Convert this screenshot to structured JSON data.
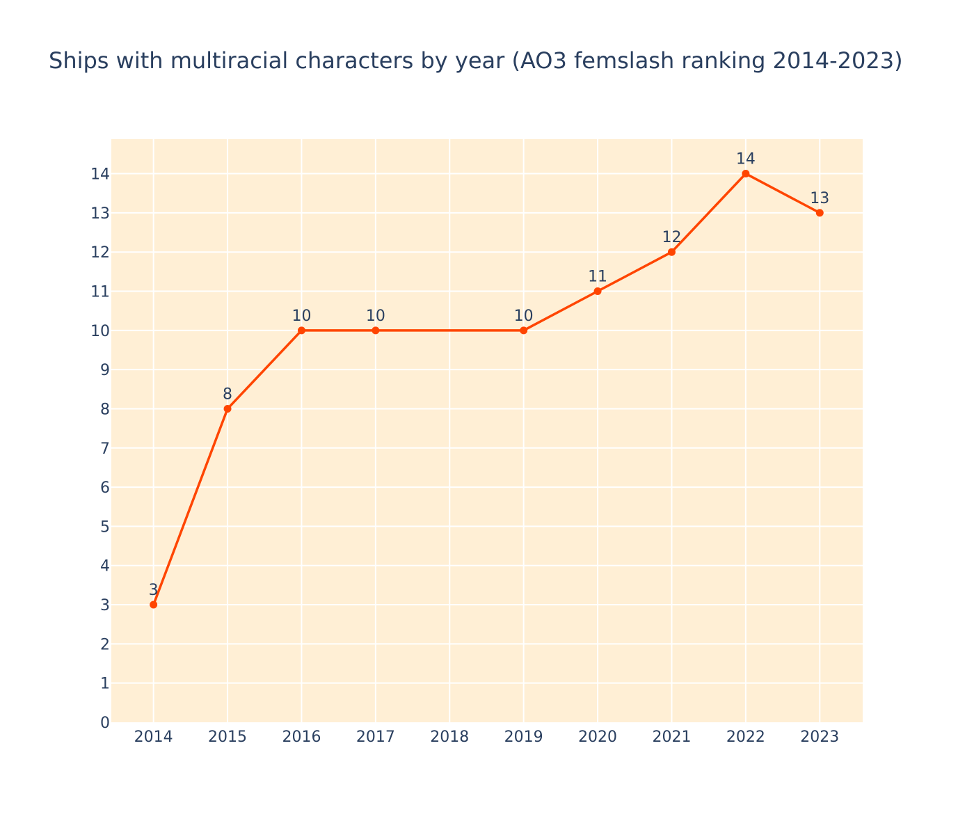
{
  "chart_data": {
    "type": "line",
    "title": "Ships with multiracial characters by year (AO3 femslash ranking 2014-2023)",
    "xlabel": "",
    "ylabel": "",
    "x": [
      2014,
      2015,
      2016,
      2017,
      2019,
      2020,
      2021,
      2022,
      2023
    ],
    "x_ticks": [
      "2014",
      "2015",
      "2016",
      "2017",
      "2018",
      "2019",
      "2020",
      "2021",
      "2022",
      "2023"
    ],
    "xlim": [
      2013.43,
      2023.58
    ],
    "y_ticks": [
      "0",
      "1",
      "2",
      "3",
      "4",
      "5",
      "6",
      "7",
      "8",
      "9",
      "10",
      "11",
      "12",
      "13",
      "14"
    ],
    "ylim": [
      0,
      14.88
    ],
    "series": [
      {
        "values": [
          3,
          8,
          10,
          10,
          10,
          11,
          12,
          14,
          13
        ],
        "labels": [
          "3",
          "8",
          "10",
          "10",
          "10",
          "11",
          "12",
          "14",
          "13"
        ],
        "color": "#ff4500"
      }
    ],
    "plot_background": "#ffefd5",
    "grid_color": "#ffffff",
    "grid": true,
    "text_color": "#2a3f5f"
  }
}
